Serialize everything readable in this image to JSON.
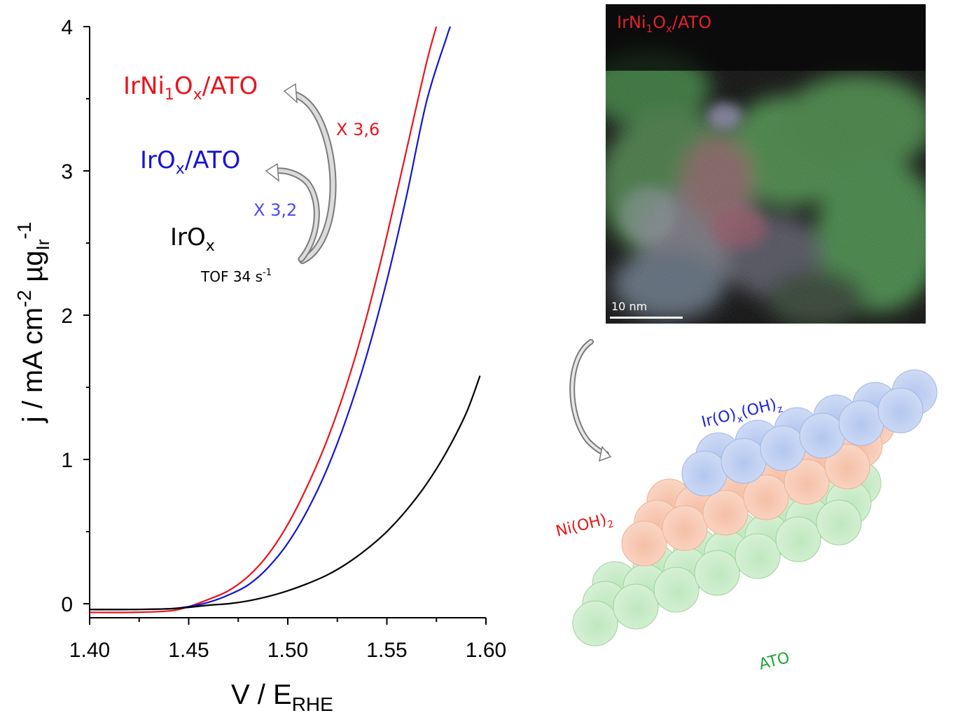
{
  "chart_data": {
    "type": "line",
    "xlabel": "V / E",
    "xlabel_sub": "RHE",
    "ylabel": "j / mA cm",
    "ylabel_sup1": "-2",
    "ylabel_mid": " µg",
    "ylabel_sub": "Ir",
    "ylabel_sup2": "-1",
    "xlim": [
      1.4,
      1.6
    ],
    "ylim": [
      -0.08,
      4.0
    ],
    "xticks": [
      "1.40",
      "1.45",
      "1.50",
      "1.55",
      "1.60"
    ],
    "yticks": [
      "0",
      "1",
      "2",
      "3",
      "4"
    ],
    "grid": false,
    "series": [
      {
        "name": "IrNi1Ox/ATO",
        "color": "#e8141c",
        "x": [
          1.4,
          1.42,
          1.44,
          1.45,
          1.46,
          1.47,
          1.48,
          1.49,
          1.5,
          1.51,
          1.52,
          1.53,
          1.54,
          1.55,
          1.56,
          1.57,
          1.575
        ],
        "y": [
          -0.06,
          -0.06,
          -0.05,
          -0.02,
          0.03,
          0.09,
          0.19,
          0.34,
          0.55,
          0.82,
          1.14,
          1.53,
          2.0,
          2.55,
          3.15,
          3.75,
          4.0
        ]
      },
      {
        "name": "IrOx/ATO",
        "color": "#1414d4",
        "x": [
          1.4,
          1.42,
          1.44,
          1.45,
          1.46,
          1.47,
          1.48,
          1.49,
          1.5,
          1.51,
          1.52,
          1.53,
          1.54,
          1.55,
          1.56,
          1.57,
          1.58,
          1.582
        ],
        "y": [
          -0.04,
          -0.04,
          -0.035,
          -0.02,
          0.01,
          0.06,
          0.13,
          0.25,
          0.42,
          0.65,
          0.94,
          1.3,
          1.73,
          2.24,
          2.83,
          3.48,
          3.92,
          4.0
        ]
      },
      {
        "name": "IrOx",
        "color": "#000000",
        "x": [
          1.4,
          1.42,
          1.44,
          1.45,
          1.46,
          1.47,
          1.48,
          1.49,
          1.5,
          1.51,
          1.52,
          1.53,
          1.54,
          1.55,
          1.56,
          1.57,
          1.58,
          1.59,
          1.597
        ],
        "y": [
          -0.04,
          -0.04,
          -0.035,
          -0.025,
          -0.01,
          0.0,
          0.02,
          0.05,
          0.09,
          0.14,
          0.2,
          0.28,
          0.38,
          0.5,
          0.65,
          0.83,
          1.05,
          1.32,
          1.58
        ]
      }
    ],
    "annotations": {
      "irni": {
        "base": "IrNi",
        "sub1": "1",
        "mid": "O",
        "sub2": "x",
        "tail": "/ATO",
        "color": "#e8141c"
      },
      "irox_ato": {
        "base": "IrO",
        "sub": "x",
        "tail": "/ATO",
        "color": "#1414d4"
      },
      "irox": {
        "base": "IrO",
        "sub": "x",
        "color": "#000000"
      },
      "tof": {
        "text": "TOF 34 s",
        "sup": "-1"
      },
      "factor_red": {
        "text": "X 3,6",
        "color": "#e8141c"
      },
      "factor_blue": {
        "text": "X 3,2",
        "color": "#4a4af0"
      }
    }
  },
  "tem_image": {
    "title_base": "IrNi",
    "title_sub1": "1",
    "title_mid": "O",
    "title_sub2": "x",
    "title_tail": "/ATO",
    "scale_label": "10 nm"
  },
  "illustration": {
    "layer_top_base": "Ir(O)",
    "layer_top_sub1": "x",
    "layer_top_mid": "(OH)",
    "layer_top_sub2": "z",
    "layer_mid_base": "Ni(OH)",
    "layer_mid_sub": "2",
    "layer_bottom": "ATO",
    "colors": {
      "top": "#2020e0",
      "mid": "#e01818",
      "bottom": "#1aa83a"
    }
  }
}
